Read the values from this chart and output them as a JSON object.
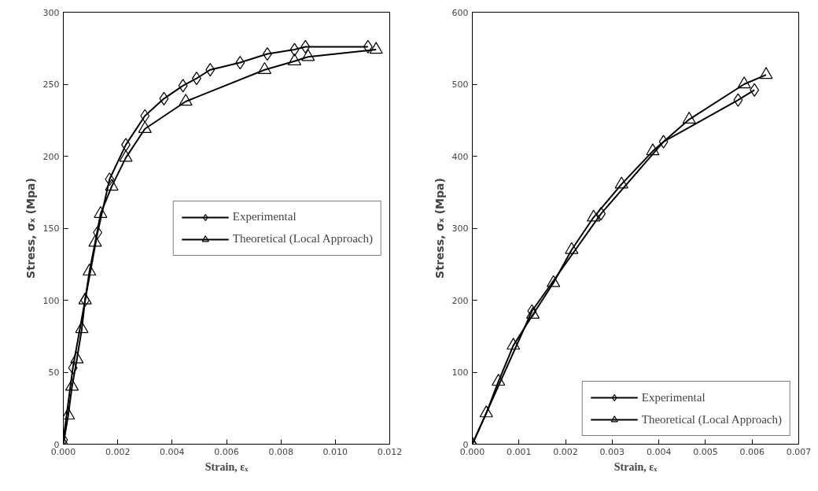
{
  "chart_data": [
    {
      "type": "line",
      "xlabel": "Strain, εₓ",
      "ylabel": "Stress, σₓ (Mpa)",
      "xlim": [
        0,
        0.012
      ],
      "ylim": [
        0,
        300
      ],
      "xticks": [
        {
          "value": 0,
          "label": "0.000"
        },
        {
          "value": 0.002,
          "label": "0.002"
        },
        {
          "value": 0.004,
          "label": "0.004"
        },
        {
          "value": 0.006,
          "label": "0.006"
        },
        {
          "value": 0.008,
          "label": "0.008"
        },
        {
          "value": 0.01,
          "label": "0.010"
        },
        {
          "value": 0.012,
          "label": "0.012"
        }
      ],
      "yticks": [
        0,
        50,
        100,
        150,
        200,
        250,
        300
      ],
      "grid": false,
      "legend": "right",
      "series": [
        {
          "name": "Experimental",
          "color": "#000000",
          "marker": "diamond",
          "x": [
            0,
            0.00035,
            0.0008,
            0.00126,
            0.0017,
            0.0023,
            0.003,
            0.0037,
            0.0044,
            0.0049,
            0.0054,
            0.0065,
            0.0075,
            0.0085,
            0.0089,
            0.0112
          ],
          "values": [
            3,
            53,
            100,
            147,
            184,
            208,
            228,
            240,
            249,
            254,
            260,
            265,
            271,
            274,
            276,
            276
          ]
        },
        {
          "name": "Theoretical (Local Approach)",
          "color": "#000000",
          "marker": "triangle",
          "x": [
            0,
            0.00018,
            0.00032,
            0.0005,
            0.00068,
            0.0008,
            0.00096,
            0.00117,
            0.00137,
            0.00178,
            0.0023,
            0.003,
            0.0045,
            0.0074,
            0.0085,
            0.009,
            0.0115
          ],
          "values": [
            0,
            20,
            40,
            59,
            80,
            100,
            120,
            140,
            160,
            179,
            199,
            219,
            238,
            260,
            266,
            269,
            274
          ]
        }
      ]
    },
    {
      "type": "line",
      "xlabel": "Strain, εₓ",
      "ylabel": "Stress, σₓ (Mpa)",
      "xlim": [
        0,
        0.007
      ],
      "ylim": [
        0,
        600
      ],
      "xticks": [
        {
          "value": 0,
          "label": "0.000"
        },
        {
          "value": 0.001,
          "label": "0.001"
        },
        {
          "value": 0.002,
          "label": "0.002"
        },
        {
          "value": 0.003,
          "label": "0.003"
        },
        {
          "value": 0.004,
          "label": "0.004"
        },
        {
          "value": 0.005,
          "label": "0.005"
        },
        {
          "value": 0.006,
          "label": "0.006"
        },
        {
          "value": 0.007,
          "label": "0.007"
        }
      ],
      "yticks": [
        0,
        100,
        200,
        300,
        400,
        500,
        600
      ],
      "grid": false,
      "legend": "bottom right",
      "series": [
        {
          "name": "Experimental",
          "color": "#000000",
          "marker": "diamond",
          "x": [
            0,
            0.00128,
            0.00276,
            0.0041,
            0.0057,
            0.00605
          ],
          "values": [
            0,
            185,
            320,
            420,
            478,
            492
          ]
        },
        {
          "name": "Theoretical (Local Approach)",
          "color": "#000000",
          "marker": "triangle",
          "x": [
            0,
            0.0003,
            0.00056,
            0.00088,
            0.0013,
            0.00174,
            0.00213,
            0.0026,
            0.0032,
            0.00387,
            0.00465,
            0.00583,
            0.0063
          ],
          "values": [
            0,
            43,
            87,
            137,
            180,
            224,
            270,
            315,
            361,
            407,
            451,
            500,
            513
          ]
        }
      ]
    }
  ]
}
